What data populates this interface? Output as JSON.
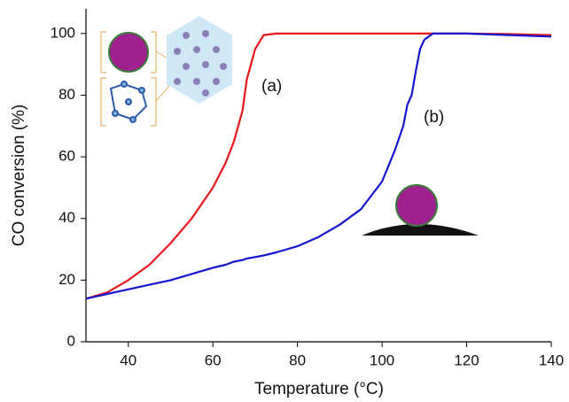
{
  "chart_data": {
    "type": "line",
    "x_label": "Temperature (°C)",
    "y_label": "CO conversion (%)",
    "annotations": [
      "(a)",
      "(b)"
    ],
    "x": [
      30,
      35,
      40,
      45,
      50,
      55,
      60,
      63,
      65,
      67,
      68,
      70,
      72,
      75,
      80,
      85,
      90,
      95,
      100,
      103,
      105,
      106,
      107,
      108,
      109,
      110,
      112,
      120,
      130,
      140
    ],
    "series": [
      {
        "name": "(a)",
        "color": "#e8161b",
        "values": [
          14,
          16,
          20,
          25,
          32,
          40,
          50,
          58,
          65,
          75,
          85,
          95,
          99.5,
          100,
          100,
          100,
          100,
          100,
          100,
          100,
          100,
          100,
          100,
          100,
          100,
          100,
          100,
          100,
          99.8,
          99.5
        ]
      },
      {
        "name": "(b)",
        "color": "#1515d0",
        "values": [
          14,
          15.5,
          17,
          18.5,
          20,
          22,
          24,
          25,
          26,
          26.5,
          27,
          27.5,
          28,
          29,
          31,
          34,
          38,
          43,
          52,
          62,
          70,
          77,
          80,
          88,
          95,
          98,
          100,
          100,
          99.5,
          99
        ]
      }
    ],
    "xlim": [
      30,
      140
    ],
    "ylim": [
      0,
      108
    ],
    "xticks": [
      40,
      60,
      80,
      100,
      120,
      140
    ],
    "yticks": [
      0,
      20,
      40,
      60,
      80,
      100
    ]
  }
}
